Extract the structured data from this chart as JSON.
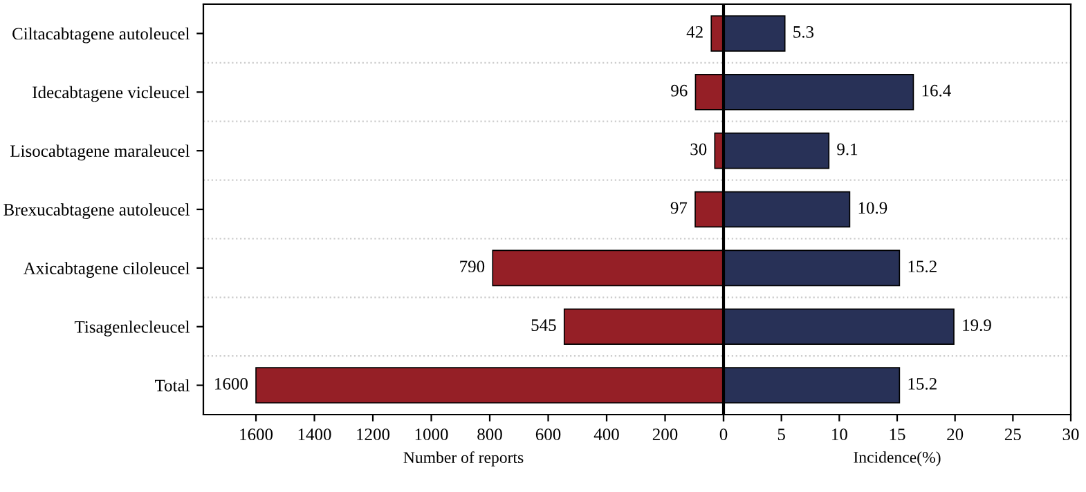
{
  "chart_data": [
    {
      "type": "bar",
      "orientation": "horizontal",
      "categories": [
        "Ciltacabtagene autoleucel",
        "Idecabtagene vicleucel",
        "Lisocabtagene maraleucel",
        "Brexucabtagene autoleucel",
        "Axicabtagene ciloleucel",
        "Tisagenlecleucel",
        "Total"
      ],
      "values": [
        42,
        96,
        30,
        97,
        790,
        545,
        1600
      ],
      "color": "#951f26",
      "xlabel": "Number of reports",
      "xlim": [
        1780,
        0
      ],
      "xticks": [
        1600,
        1400,
        1200,
        1000,
        800,
        600,
        400,
        200,
        0
      ],
      "data_labels": true,
      "grid": "y"
    },
    {
      "type": "bar",
      "orientation": "horizontal",
      "values": [
        5.3,
        16.4,
        9.1,
        10.9,
        15.2,
        19.9,
        15.2
      ],
      "color": "#283157",
      "xlabel": "Incidence(%)",
      "xlim": [
        0,
        30
      ],
      "xticks": [
        {
          "value": 0,
          "label": null
        },
        5,
        10,
        15,
        20,
        25,
        30
      ],
      "data_labels": true,
      "grid": "y",
      "tick_labels": "x"
    }
  ]
}
